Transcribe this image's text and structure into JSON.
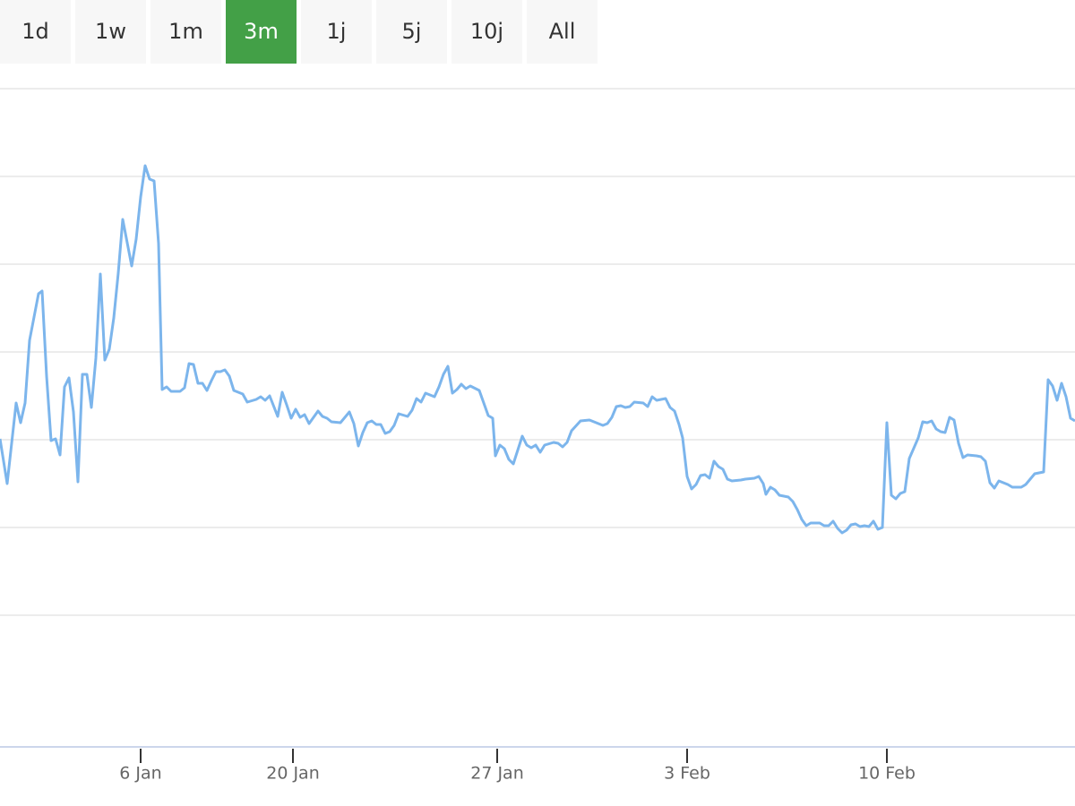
{
  "range_buttons": {
    "labels": [
      "1d",
      "1w",
      "1m",
      "3m",
      "1j",
      "5j",
      "10j",
      "All"
    ],
    "active": 3,
    "active_color": "#43a047"
  },
  "chart_data": {
    "type": "line",
    "grid": true,
    "xlim": [
      0,
      1200
    ],
    "ylim": [
      0,
      735
    ],
    "yticks": [
      147,
      245,
      343,
      441,
      539,
      637,
      735
    ],
    "xticks": [
      {
        "value": 157,
        "label": "6 Jan"
      },
      {
        "value": 327,
        "label": "20 Jan"
      },
      {
        "value": 555,
        "label": "27 Jan"
      },
      {
        "value": 767,
        "label": "3 Feb"
      },
      {
        "value": 990,
        "label": "10 Feb"
      }
    ],
    "x": [
      0,
      8,
      18,
      23,
      28,
      33,
      43,
      47,
      52,
      57,
      62,
      67,
      72,
      77,
      82,
      87,
      92,
      97,
      102,
      107,
      112,
      117,
      122,
      127,
      132,
      137,
      147,
      152,
      157,
      162,
      167,
      172,
      177,
      181,
      186,
      191,
      201,
      206,
      211,
      216,
      221,
      226,
      231,
      236,
      241,
      246,
      251,
      256,
      261,
      271,
      276,
      286,
      291,
      296,
      301,
      310,
      315,
      320,
      325,
      330,
      335,
      340,
      345,
      355,
      360,
      365,
      370,
      380,
      390,
      395,
      400,
      405,
      410,
      415,
      420,
      425,
      430,
      435,
      440,
      445,
      455,
      460,
      465,
      470,
      475,
      480,
      485,
      490,
      495,
      500,
      505,
      510,
      515,
      520,
      525,
      535,
      540,
      545,
      550,
      553,
      558,
      563,
      568,
      573,
      583,
      588,
      593,
      598,
      603,
      608,
      618,
      623,
      628,
      633,
      638,
      648,
      658,
      668,
      673,
      678,
      683,
      688,
      693,
      698,
      703,
      708,
      718,
      723,
      728,
      733,
      738,
      743,
      748,
      753,
      758,
      762,
      767,
      772,
      777,
      782,
      787,
      792,
      797,
      802,
      807,
      812,
      817,
      827,
      832,
      842,
      847,
      852,
      855,
      860,
      865,
      870,
      880,
      885,
      890,
      895,
      900,
      905,
      915,
      920,
      925,
      930,
      935,
      940,
      945,
      950,
      955,
      960,
      965,
      970,
      975,
      980,
      985,
      990,
      995,
      1000,
      1005,
      1010,
      1015,
      1025,
      1030,
      1035,
      1040,
      1045,
      1050,
      1055,
      1060,
      1065,
      1070,
      1075,
      1080,
      1090,
      1095,
      1100,
      1105,
      1110,
      1115,
      1125,
      1130,
      1140,
      1145,
      1150,
      1155,
      1165,
      1170,
      1175,
      1180,
      1185,
      1190,
      1195,
      1200
    ],
    "series": [
      {
        "color": "#7cb5ec",
        "values": [
          344,
          294,
          384,
          362,
          384,
          454,
          506,
          509,
          414,
          342,
          344,
          326,
          402,
          412,
          374,
          296,
          416,
          416,
          379,
          434,
          528,
          432,
          444,
          479,
          529,
          589,
          537,
          567,
          614,
          649,
          634,
          632,
          562,
          399,
          402,
          397,
          397,
          401,
          428,
          427,
          406,
          406,
          398,
          409,
          419,
          419,
          421,
          414,
          398,
          394,
          385,
          388,
          391,
          387,
          392,
          369,
          396,
          382,
          367,
          377,
          368,
          371,
          361,
          375,
          369,
          367,
          363,
          362,
          374,
          361,
          336,
          351,
          362,
          364,
          360,
          360,
          350,
          352,
          359,
          372,
          369,
          376,
          389,
          385,
          395,
          393,
          391,
          402,
          416,
          425,
          395,
          399,
          405,
          400,
          403,
          398,
          384,
          370,
          367,
          325,
          337,
          333,
          321,
          316,
          347,
          337,
          334,
          337,
          329,
          337,
          340,
          339,
          335,
          340,
          353,
          364,
          365,
          361,
          359,
          361,
          368,
          380,
          381,
          379,
          380,
          385,
          384,
          380,
          391,
          387,
          388,
          389,
          379,
          375,
          360,
          345,
          302,
          288,
          293,
          303,
          304,
          300,
          319,
          313,
          310,
          299,
          297,
          298,
          299,
          300,
          302,
          294,
          282,
          290,
          287,
          281,
          279,
          274,
          265,
          254,
          247,
          250,
          250,
          247,
          247,
          252,
          244,
          239,
          242,
          248,
          249,
          246,
          247,
          246,
          252,
          243,
          245,
          362,
          281,
          277,
          283,
          285,
          322,
          345,
          363,
          362,
          364,
          355,
          352,
          351,
          368,
          365,
          339,
          323,
          326,
          325,
          324,
          319,
          295,
          289,
          297,
          293,
          290,
          290,
          293,
          299,
          305,
          307,
          410,
          403,
          387,
          406,
          391,
          367,
          364
        ]
      }
    ]
  }
}
